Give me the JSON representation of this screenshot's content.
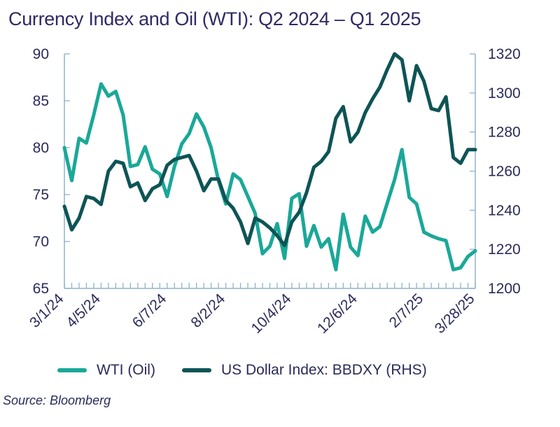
{
  "title": "Currency Index and Oil (WTI): Q2 2024 – Q1 2025",
  "source": "Source: Bloomberg",
  "chart_data": {
    "type": "line",
    "title": "Currency Index and Oil (WTI): Q2 2024 – Q1 2025",
    "x_tick_labels": [
      "3/1/24",
      "4/5/24",
      "6/7/24",
      "8/2/24",
      "10/4/24",
      "12/6/24",
      "2/7/25",
      "3/28/25"
    ],
    "x_tick_index": [
      0,
      5,
      14,
      22,
      31,
      40,
      49,
      56
    ],
    "left_axis": {
      "ylim": [
        65,
        90
      ],
      "ticks": [
        65,
        70,
        75,
        80,
        85,
        90
      ]
    },
    "right_axis": {
      "ylim": [
        1200,
        1320
      ],
      "ticks": [
        1200,
        1220,
        1240,
        1260,
        1280,
        1300,
        1320
      ]
    },
    "grid": false,
    "legend_position": "bottom",
    "series": [
      {
        "name": "WTI (Oil)",
        "axis": "left",
        "color": "#1aa898",
        "values": [
          80.0,
          76.5,
          81.0,
          80.5,
          83.5,
          86.8,
          85.5,
          86.0,
          83.5,
          78.0,
          78.2,
          80.1,
          77.7,
          77.2,
          74.8,
          78.0,
          80.4,
          81.5,
          83.6,
          82.2,
          80.0,
          76.5,
          74.0,
          77.2,
          76.6,
          74.8,
          73.0,
          68.7,
          69.5,
          71.9,
          68.2,
          74.6,
          75.1,
          69.5,
          71.7,
          69.4,
          70.3,
          67.0,
          72.9,
          69.4,
          68.5,
          72.7,
          71.0,
          71.6,
          74.1,
          76.6,
          79.8,
          74.7,
          74.0,
          71.0,
          70.6,
          70.3,
          70.1,
          67.0,
          67.2,
          68.4,
          69.0
        ]
      },
      {
        "name": "US Dollar Index: BBDXY  (RHS)",
        "axis": "right",
        "color": "#0e5455",
        "values": [
          1242,
          1230,
          1236,
          1247,
          1246,
          1243,
          1260,
          1265,
          1264,
          1252,
          1254,
          1245,
          1251,
          1253,
          1263,
          1266,
          1267,
          1268,
          1260,
          1250,
          1256,
          1256,
          1245,
          1241,
          1234,
          1223,
          1236,
          1234,
          1231,
          1227,
          1222,
          1234,
          1239,
          1249,
          1262,
          1265,
          1270,
          1287,
          1293,
          1275,
          1280,
          1290,
          1297,
          1303,
          1312,
          1320,
          1317,
          1296,
          1314,
          1306,
          1292,
          1291,
          1298,
          1267,
          1264,
          1271,
          1271
        ]
      }
    ]
  }
}
